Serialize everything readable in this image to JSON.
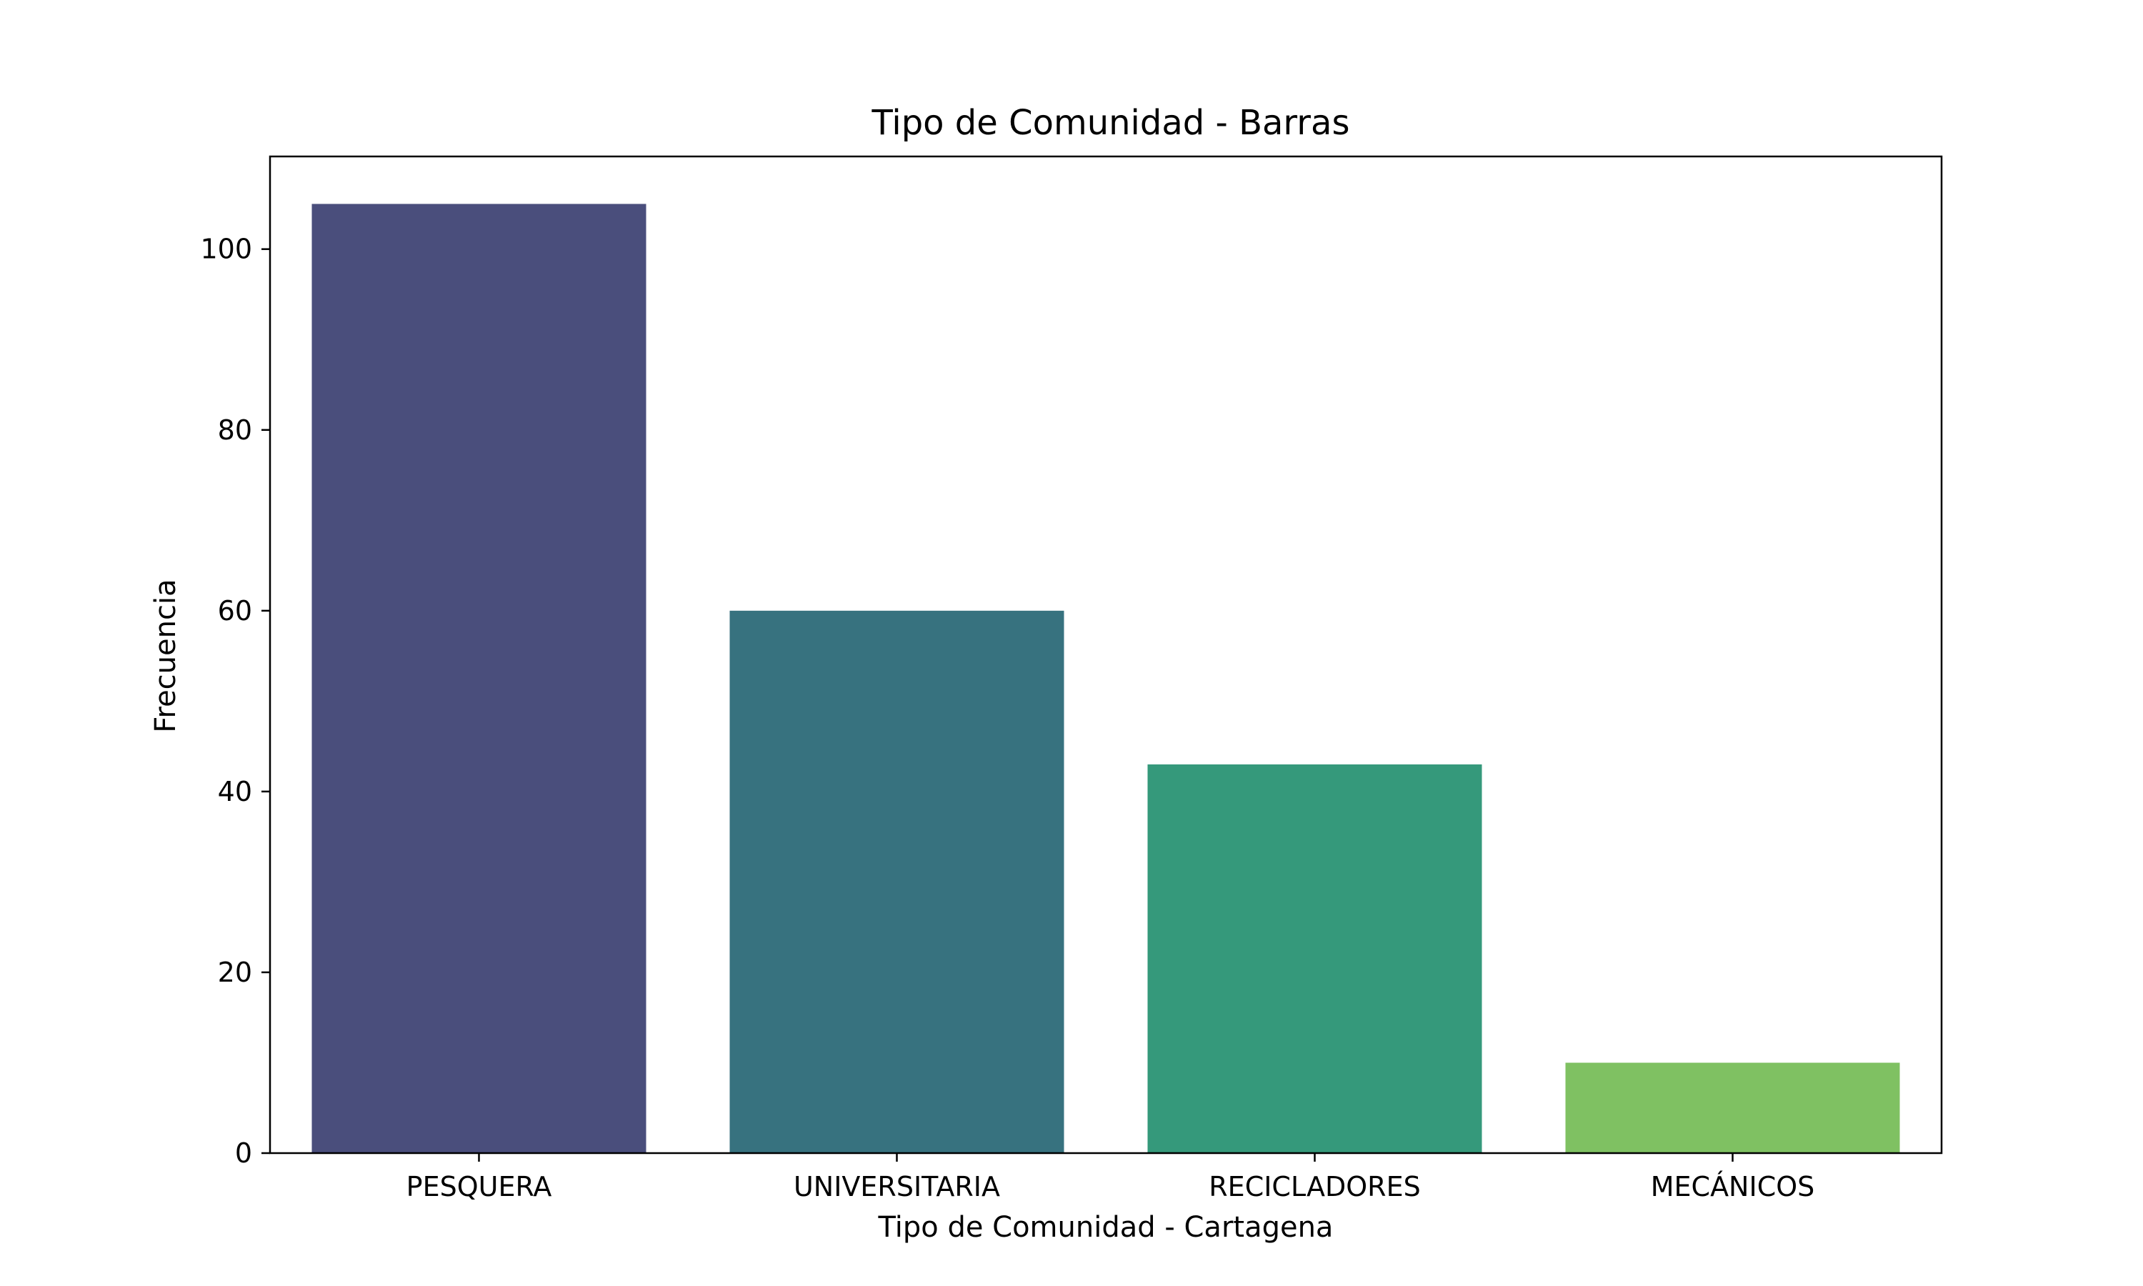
{
  "chart_data": {
    "type": "bar",
    "title": "Tipo de Comunidad - Barras",
    "xlabel": "Tipo de Comunidad - Cartagena",
    "ylabel": "Frecuencia",
    "categories": [
      "PESQUERA",
      "UNIVERSITARIA",
      "RECICLADORES",
      "MECÁNICOS"
    ],
    "values": [
      105,
      60,
      43,
      10
    ],
    "colors": [
      "#4a4e7c",
      "#37727f",
      "#35997b",
      "#7fc162"
    ],
    "ylim": [
      0,
      110.25
    ],
    "yticks": [
      0,
      20,
      40,
      60,
      80,
      100
    ],
    "grid": false,
    "legend": "none"
  }
}
